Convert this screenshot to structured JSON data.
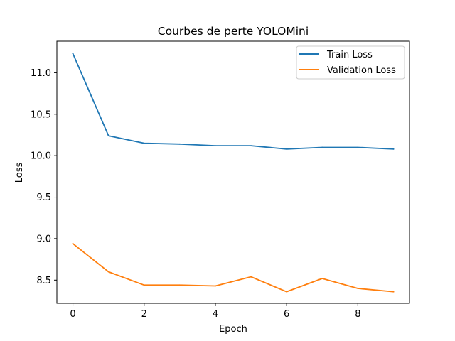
{
  "chart_data": {
    "type": "line",
    "title": "Courbes de perte YOLOMini",
    "xlabel": "Epoch",
    "ylabel": "Loss",
    "xlim": [
      -0.45,
      9.45
    ],
    "ylim": [
      8.22,
      11.38
    ],
    "xticks": [
      0,
      2,
      4,
      6,
      8
    ],
    "yticks": [
      8.5,
      9.0,
      9.5,
      10.0,
      10.5,
      11.0
    ],
    "ytick_labels": [
      "8.5",
      "9.0",
      "9.5",
      "10.0",
      "10.5",
      "11.0"
    ],
    "grid": false,
    "legend_position": "top-right",
    "x": [
      0,
      1,
      2,
      3,
      4,
      5,
      6,
      7,
      8,
      9
    ],
    "series": [
      {
        "name": "Train Loss",
        "color": "#1f77b4",
        "values": [
          11.23,
          10.24,
          10.15,
          10.14,
          10.12,
          10.12,
          10.08,
          10.1,
          10.1,
          10.08
        ]
      },
      {
        "name": "Validation Loss",
        "color": "#ff7f0e",
        "values": [
          8.94,
          8.6,
          8.44,
          8.44,
          8.43,
          8.54,
          8.36,
          8.52,
          8.4,
          8.36
        ]
      }
    ]
  }
}
